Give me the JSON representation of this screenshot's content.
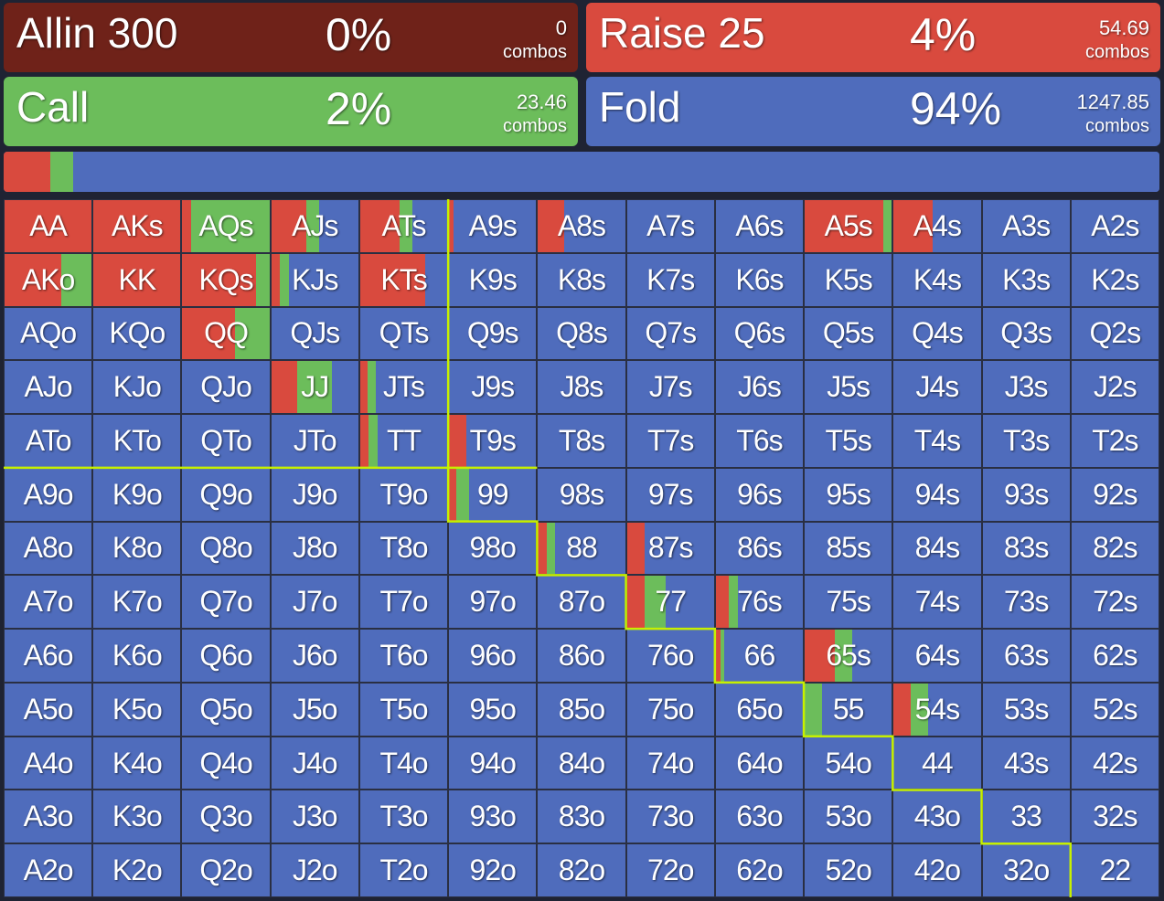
{
  "colors": {
    "allin": "#6f2219",
    "raise": "#d94a3e",
    "call": "#6cbd5b",
    "fold": "#4f6cbc",
    "outline": "#c7f000"
  },
  "actions": [
    {
      "name": "Allin 300",
      "pct": "0%",
      "combos": "0",
      "combos_label": "combos",
      "color_key": "allin"
    },
    {
      "name": "Raise 25",
      "pct": "4%",
      "combos": "54.69",
      "combos_label": "combos",
      "color_key": "raise"
    },
    {
      "name": "Call",
      "pct": "2%",
      "combos": "23.46",
      "combos_label": "combos",
      "color_key": "call"
    },
    {
      "name": "Fold",
      "pct": "94%",
      "combos": "1247.85",
      "combos_label": "combos",
      "color_key": "fold"
    }
  ],
  "strategy_bar": {
    "raise": 4,
    "call": 2,
    "fold": 94
  },
  "grid": {
    "rows": [
      [
        "AA",
        "AKs",
        "AQs",
        "AJs",
        "ATs",
        "A9s",
        "A8s",
        "A7s",
        "A6s",
        "A5s",
        "A4s",
        "A3s",
        "A2s"
      ],
      [
        "AKo",
        "KK",
        "KQs",
        "KJs",
        "KTs",
        "K9s",
        "K8s",
        "K7s",
        "K6s",
        "K5s",
        "K4s",
        "K3s",
        "K2s"
      ],
      [
        "AQo",
        "KQo",
        "QQ",
        "QJs",
        "QTs",
        "Q9s",
        "Q8s",
        "Q7s",
        "Q6s",
        "Q5s",
        "Q4s",
        "Q3s",
        "Q2s"
      ],
      [
        "AJo",
        "KJo",
        "QJo",
        "JJ",
        "JTs",
        "J9s",
        "J8s",
        "J7s",
        "J6s",
        "J5s",
        "J4s",
        "J3s",
        "J2s"
      ],
      [
        "ATo",
        "KTo",
        "QTo",
        "JTo",
        "TT",
        "T9s",
        "T8s",
        "T7s",
        "T6s",
        "T5s",
        "T4s",
        "T3s",
        "T2s"
      ],
      [
        "A9o",
        "K9o",
        "Q9o",
        "J9o",
        "T9o",
        "99",
        "98s",
        "97s",
        "96s",
        "95s",
        "94s",
        "93s",
        "92s"
      ],
      [
        "A8o",
        "K8o",
        "Q8o",
        "J8o",
        "T8o",
        "98o",
        "88",
        "87s",
        "86s",
        "85s",
        "84s",
        "83s",
        "82s"
      ],
      [
        "A7o",
        "K7o",
        "Q7o",
        "J7o",
        "T7o",
        "97o",
        "87o",
        "77",
        "76s",
        "75s",
        "74s",
        "73s",
        "72s"
      ],
      [
        "A6o",
        "K6o",
        "Q6o",
        "J6o",
        "T6o",
        "96o",
        "86o",
        "76o",
        "66",
        "65s",
        "64s",
        "63s",
        "62s"
      ],
      [
        "A5o",
        "K5o",
        "Q5o",
        "J5o",
        "T5o",
        "95o",
        "85o",
        "75o",
        "65o",
        "55",
        "54s",
        "53s",
        "52s"
      ],
      [
        "A4o",
        "K4o",
        "Q4o",
        "J4o",
        "T4o",
        "94o",
        "84o",
        "74o",
        "64o",
        "54o",
        "44",
        "43s",
        "42s"
      ],
      [
        "A3o",
        "K3o",
        "Q3o",
        "J3o",
        "T3o",
        "93o",
        "83o",
        "73o",
        "63o",
        "53o",
        "43o",
        "33",
        "32s"
      ],
      [
        "A2o",
        "K2o",
        "Q2o",
        "J2o",
        "T2o",
        "92o",
        "82o",
        "72o",
        "62o",
        "52o",
        "42o",
        "32o",
        "22"
      ]
    ],
    "mixes": {
      "AA": {
        "raise": 100,
        "call": 0
      },
      "AKs": {
        "raise": 100,
        "call": 0
      },
      "AQs": {
        "raise": 10,
        "call": 90
      },
      "AJs": {
        "raise": 40,
        "call": 15
      },
      "ATs": {
        "raise": 45,
        "call": 15
      },
      "A9s": {
        "raise": 5,
        "call": 0
      },
      "A8s": {
        "raise": 30,
        "call": 0
      },
      "A5s": {
        "raise": 90,
        "call": 10
      },
      "A4s": {
        "raise": 45,
        "call": 0
      },
      "AKo": {
        "raise": 65,
        "call": 35
      },
      "KK": {
        "raise": 100,
        "call": 0
      },
      "KQs": {
        "raise": 85,
        "call": 15
      },
      "KJs": {
        "raise": 10,
        "call": 10
      },
      "KTs": {
        "raise": 75,
        "call": 0
      },
      "QQ": {
        "raise": 60,
        "call": 40
      },
      "JJ": {
        "raise": 30,
        "call": 40
      },
      "JTs": {
        "raise": 8,
        "call": 10
      },
      "TT": {
        "raise": 10,
        "call": 10
      },
      "T9s": {
        "raise": 20,
        "call": 0
      },
      "99": {
        "raise": 8,
        "call": 15
      },
      "88": {
        "raise": 10,
        "call": 10
      },
      "87s": {
        "raise": 20,
        "call": 0
      },
      "77": {
        "raise": 20,
        "call": 25
      },
      "76s": {
        "raise": 15,
        "call": 10
      },
      "66": {
        "raise": 5,
        "call": 5
      },
      "65s": {
        "raise": 35,
        "call": 20
      },
      "55": {
        "raise": 0,
        "call": 20
      },
      "54s": {
        "raise": 20,
        "call": 20
      }
    }
  }
}
